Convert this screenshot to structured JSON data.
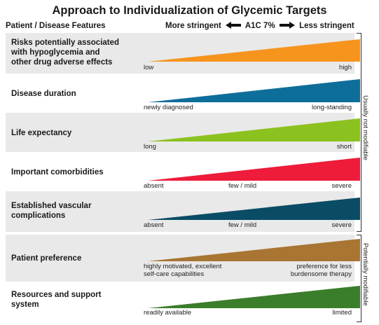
{
  "title": "Approach to Individualization of Glycemic Targets",
  "header": {
    "features_label": "Patient / Disease Features",
    "more_stringent": "More stringent",
    "a1c": "A1C 7%",
    "less_stringent": "Less stringent"
  },
  "rows": [
    {
      "feature": [
        "Risks potentially associated",
        "with hypoglycemia and",
        "other drug adverse effects"
      ],
      "color": "#f7941d",
      "labels": {
        "low": "low",
        "high": "high"
      }
    },
    {
      "feature": [
        "Disease duration"
      ],
      "color": "#0e6e9a",
      "labels": {
        "low": "newly diagnosed",
        "high": "long-standing"
      }
    },
    {
      "feature": [
        "Life expectancy"
      ],
      "color": "#8cc21f",
      "labels": {
        "low": "long",
        "high": "short"
      }
    },
    {
      "feature": [
        "Important comorbidities"
      ],
      "color": "#ee1c3a",
      "labels": {
        "low": "absent",
        "mid": "few / mild",
        "high": "severe"
      }
    },
    {
      "feature": [
        "Established vascular",
        "complications"
      ],
      "color": "#0a4c66",
      "labels": {
        "low": "absent",
        "mid": "few / mild",
        "high": "severe"
      }
    },
    {
      "feature": [
        "Patient preference"
      ],
      "color": "#a87532",
      "labels": {
        "low": [
          "highly motivated, excellent",
          "self-care capabilities"
        ],
        "high": [
          "preference for less",
          "burdensome therapy"
        ]
      }
    },
    {
      "feature": [
        "Resources and support",
        "system"
      ],
      "color": "#3a7d2a",
      "labels": {
        "low": "readily available",
        "high": "limited"
      }
    }
  ],
  "groups": {
    "not_modifiable": "Usually not modifiable",
    "modifiable": "Potentially modifiable"
  }
}
